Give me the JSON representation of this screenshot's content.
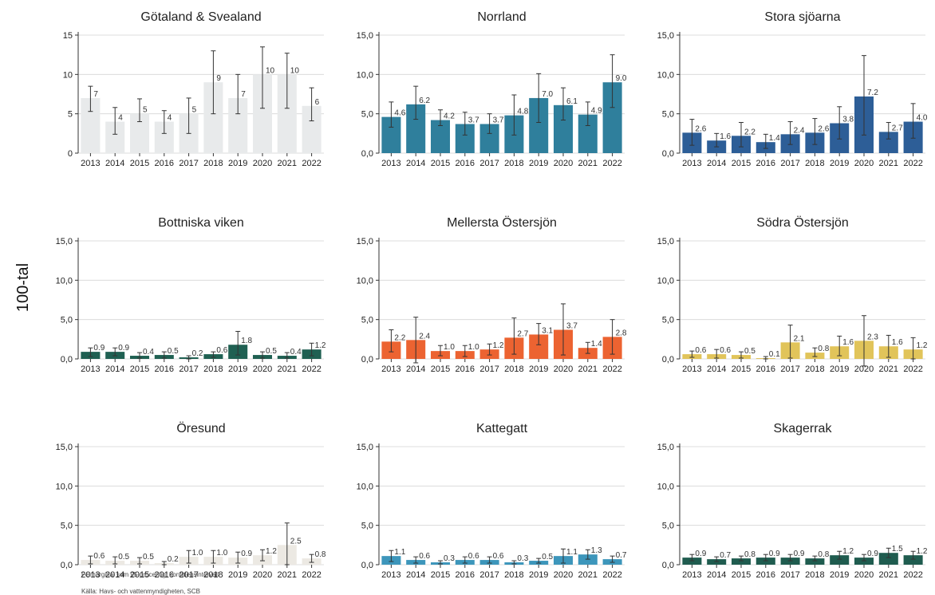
{
  "ylabel": "100-tal",
  "footnote": "Felmarginal som 95-procentigt konfidensintervall",
  "source": "Källa: Havs- och vattenmyndigheten, SCB",
  "chart_data": [
    {
      "type": "bar",
      "title": "Götaland & Svealand",
      "color": "#e8eaeb",
      "categories": [
        "2013",
        "2014",
        "2015",
        "2016",
        "2017",
        "2018",
        "2019",
        "2020",
        "2021",
        "2022"
      ],
      "values": [
        7,
        4,
        5,
        4,
        5,
        9,
        7,
        10,
        10,
        6
      ],
      "labels": [
        "7",
        "4",
        "5",
        "4",
        "5",
        "9",
        "7",
        "10",
        "10",
        "6"
      ],
      "err_low": [
        5.3,
        2.4,
        4.0,
        2.5,
        2.5,
        5.0,
        5.0,
        5.7,
        5.7,
        4.1
      ],
      "err_high": [
        8.5,
        5.8,
        6.9,
        5.4,
        7.0,
        13.0,
        10.0,
        13.5,
        12.7,
        8.3
      ],
      "yticks": [
        "0",
        "5",
        "10",
        "15"
      ],
      "ylim": [
        0,
        15
      ]
    },
    {
      "type": "bar",
      "title": "Norrland",
      "color": "#2f7f9c",
      "categories": [
        "2013",
        "2014",
        "2015",
        "2016",
        "2017",
        "2018",
        "2019",
        "2020",
        "2021",
        "2022"
      ],
      "values": [
        4.6,
        6.2,
        4.2,
        3.7,
        3.7,
        4.8,
        7.0,
        6.1,
        4.9,
        9.0
      ],
      "labels": [
        "4.6",
        "6.2",
        "4.2",
        "3.7",
        "3.7",
        "4.8",
        "7.0",
        "6.1",
        "4.9",
        "9.0"
      ],
      "err_low": [
        3.3,
        4.3,
        3.5,
        2.3,
        2.5,
        2.3,
        3.9,
        4.2,
        3.5,
        5.8
      ],
      "err_high": [
        6.5,
        8.5,
        5.5,
        5.2,
        5.0,
        7.4,
        10.1,
        8.3,
        6.5,
        12.5
      ],
      "yticks": [
        "0,0",
        "5,0",
        "10,0",
        "15,0"
      ],
      "ylim": [
        0,
        15
      ]
    },
    {
      "type": "bar",
      "title": "Stora sjöarna",
      "color": "#2d5e97",
      "categories": [
        "2013",
        "2014",
        "2015",
        "2016",
        "2017",
        "2018",
        "2019",
        "2020",
        "2021",
        "2022"
      ],
      "values": [
        2.6,
        1.6,
        2.2,
        1.4,
        2.4,
        2.6,
        3.8,
        7.2,
        2.7,
        4.0
      ],
      "labels": [
        "2.6",
        "1.6",
        "2.2",
        "1.4",
        "2.4",
        "2.6",
        "3.8",
        "7.2",
        "2.7",
        "4.0"
      ],
      "err_low": [
        1.0,
        0.8,
        0.8,
        0.6,
        1.1,
        1.1,
        1.8,
        2.3,
        1.8,
        1.9
      ],
      "err_high": [
        4.3,
        2.5,
        3.9,
        2.4,
        4.0,
        4.4,
        5.9,
        12.4,
        3.9,
        6.3
      ],
      "yticks": [
        "0,0",
        "5,0",
        "10,0",
        "15,0"
      ],
      "ylim": [
        0,
        15
      ]
    },
    {
      "type": "bar",
      "title": "Bottniska viken",
      "color": "#1f6052",
      "categories": [
        "2013",
        "2014",
        "2015",
        "2016",
        "2017",
        "2018",
        "2019",
        "2020",
        "2021",
        "2022"
      ],
      "values": [
        0.9,
        0.9,
        0.4,
        0.5,
        0.2,
        0.6,
        1.8,
        0.5,
        0.4,
        1.2
      ],
      "labels": [
        "0.9",
        "0.9",
        "0.4",
        "0.5",
        "0.2",
        "0.6",
        "1.8",
        "0.5",
        "0.4",
        "1.2"
      ],
      "err_low": [
        0.3,
        0.4,
        0.1,
        0.1,
        0.0,
        0.2,
        0.5,
        0.1,
        0.1,
        0.4
      ],
      "err_high": [
        1.4,
        1.4,
        0.8,
        0.9,
        0.4,
        0.9,
        3.5,
        0.9,
        0.8,
        2.0
      ],
      "yticks": [
        "0,0",
        "5,0",
        "10,0",
        "15,0"
      ],
      "ylim": [
        0,
        15
      ]
    },
    {
      "type": "bar",
      "title": "Mellersta Östersjön",
      "color": "#ec6331",
      "categories": [
        "2013",
        "2014",
        "2015",
        "2016",
        "2017",
        "2018",
        "2019",
        "2020",
        "2021",
        "2022"
      ],
      "values": [
        2.2,
        2.4,
        1.0,
        1.0,
        1.2,
        2.7,
        3.1,
        3.7,
        1.4,
        2.8
      ],
      "labels": [
        "2.2",
        "2.4",
        "1.0",
        "1.0",
        "1.2",
        "2.7",
        "3.1",
        "3.7",
        "1.4",
        "2.8"
      ],
      "err_low": [
        0.9,
        -0.5,
        0.4,
        0.3,
        0.5,
        0.6,
        1.8,
        0.5,
        0.7,
        0.6
      ],
      "err_high": [
        3.7,
        5.3,
        1.7,
        1.7,
        1.9,
        5.2,
        4.5,
        7.0,
        2.1,
        5.0
      ],
      "yticks": [
        "0,0",
        "5,0",
        "10,0",
        "15,0"
      ],
      "ylim": [
        0,
        15
      ]
    },
    {
      "type": "bar",
      "title": "Södra Östersjön",
      "color": "#e1c45a",
      "categories": [
        "2013",
        "2014",
        "2015",
        "2016",
        "2017",
        "2018",
        "2019",
        "2020",
        "2021",
        "2022"
      ],
      "values": [
        0.6,
        0.6,
        0.5,
        0.1,
        2.1,
        0.8,
        1.6,
        2.3,
        1.6,
        1.2
      ],
      "labels": [
        "0.6",
        "0.6",
        "0.5",
        "0.1",
        "2.1",
        "0.8",
        "1.6",
        "2.3",
        "1.6",
        "1.2"
      ],
      "err_low": [
        0.2,
        0.1,
        0.1,
        0.0,
        0.1,
        0.3,
        0.4,
        -0.9,
        0.2,
        0.0
      ],
      "err_high": [
        1.0,
        1.2,
        0.9,
        0.3,
        4.3,
        1.4,
        2.9,
        5.5,
        3.0,
        2.7
      ],
      "yticks": [
        "0,0",
        "5,0",
        "10,0",
        "15,0"
      ],
      "ylim": [
        0,
        15
      ]
    },
    {
      "type": "bar",
      "title": "Öresund",
      "color": "#ece9e3",
      "categories": [
        "2013",
        "2014",
        "2015",
        "2016",
        "2017",
        "2018",
        "2019",
        "2020",
        "2021",
        "2022"
      ],
      "values": [
        0.6,
        0.5,
        0.5,
        0.2,
        1.0,
        1.0,
        0.9,
        1.2,
        2.5,
        0.8
      ],
      "labels": [
        "0.6",
        "0.5",
        "0.5",
        "0.2",
        "1.0",
        "1.0",
        "0.9",
        "1.2",
        "2.5",
        "0.8"
      ],
      "err_low": [
        0.1,
        0.1,
        0.1,
        0.0,
        0.2,
        0.2,
        0.2,
        0.5,
        0.0,
        0.3
      ],
      "err_high": [
        1.1,
        1.0,
        0.9,
        0.4,
        1.8,
        1.8,
        1.6,
        1.9,
        5.3,
        1.3
      ],
      "yticks": [
        "0,0",
        "5,0",
        "10,0",
        "15,0"
      ],
      "ylim": [
        0,
        15
      ]
    },
    {
      "type": "bar",
      "title": "Kattegatt",
      "color": "#3d96bb",
      "categories": [
        "2013",
        "2014",
        "2015",
        "2016",
        "2017",
        "2018",
        "2019",
        "2020",
        "2021",
        "2022"
      ],
      "values": [
        1.1,
        0.6,
        0.3,
        0.6,
        0.6,
        0.3,
        0.5,
        1.1,
        1.3,
        0.7
      ],
      "labels": [
        "1.1",
        "0.6",
        "0.3",
        "0.6",
        "0.6",
        "0.3",
        "0.5",
        "1.1",
        "1.3",
        "0.7"
      ],
      "err_low": [
        0.4,
        0.2,
        0.1,
        0.2,
        0.2,
        0.1,
        0.2,
        0.2,
        0.7,
        0.3
      ],
      "err_high": [
        1.8,
        1.0,
        0.5,
        1.0,
        1.0,
        0.5,
        0.8,
        2.0,
        1.9,
        1.1
      ],
      "yticks": [
        "0,0",
        "5,0",
        "10,0",
        "15,0"
      ],
      "ylim": [
        0,
        15
      ]
    },
    {
      "type": "bar",
      "title": "Skagerrak",
      "color": "#1f5c4f",
      "categories": [
        "2013",
        "2014",
        "2015",
        "2016",
        "2017",
        "2018",
        "2019",
        "2020",
        "2021",
        "2022"
      ],
      "values": [
        0.9,
        0.7,
        0.8,
        0.9,
        0.9,
        0.8,
        1.2,
        0.9,
        1.5,
        1.2
      ],
      "labels": [
        "0.9",
        "0.7",
        "0.8",
        "0.9",
        "0.9",
        "0.8",
        "1.2",
        "0.9",
        "1.5",
        "1.2"
      ],
      "err_low": [
        0.5,
        0.4,
        0.5,
        0.5,
        0.5,
        0.5,
        0.7,
        0.5,
        0.9,
        0.7
      ],
      "err_high": [
        1.3,
        1.0,
        1.1,
        1.3,
        1.3,
        1.1,
        1.7,
        1.3,
        2.1,
        1.7
      ],
      "yticks": [
        "0,0",
        "5,0",
        "10,0",
        "15,0"
      ],
      "ylim": [
        0,
        15
      ]
    }
  ]
}
